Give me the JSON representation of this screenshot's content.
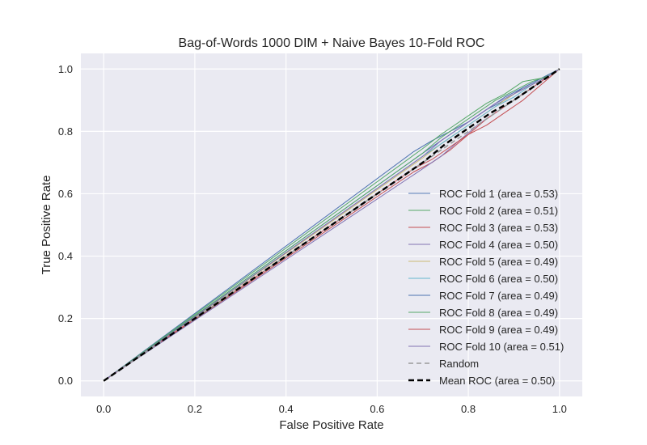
{
  "chart_data": {
    "type": "line",
    "title": "Bag-of-Words 1000 DIM + Naive Bayes 10-Fold ROC",
    "xlabel": "False Positive Rate",
    "ylabel": "True Positive Rate",
    "xlim": [
      -0.05,
      1.05
    ],
    "ylim": [
      -0.05,
      1.05
    ],
    "x_ticks": [
      "0.0",
      "0.2",
      "0.4",
      "0.6",
      "0.8",
      "1.0"
    ],
    "y_ticks": [
      "0.0",
      "0.2",
      "0.4",
      "0.6",
      "0.8",
      "1.0"
    ],
    "grid": true,
    "legend_position": "lower-right",
    "series": [
      {
        "name": "ROC Fold 1 (area = 0.53)",
        "color": "#4c72b0",
        "dash": "solid",
        "x": [
          0,
          0.68,
          0.72,
          0.76,
          0.8,
          0.84,
          0.88,
          0.92,
          0.96,
          1.0
        ],
        "y": [
          0,
          0.735,
          0.77,
          0.8,
          0.83,
          0.87,
          0.9,
          0.94,
          0.97,
          1.0
        ]
      },
      {
        "name": "ROC Fold 2 (area = 0.51)",
        "color": "#55a868",
        "dash": "solid",
        "x": [
          0,
          0.7,
          0.74,
          0.76,
          0.8,
          0.84,
          0.88,
          0.92,
          0.96,
          1.0
        ],
        "y": [
          0,
          0.745,
          0.79,
          0.81,
          0.85,
          0.89,
          0.92,
          0.96,
          0.97,
          1.0
        ]
      },
      {
        "name": "ROC Fold 3 (area = 0.53)",
        "color": "#c44e52",
        "dash": "solid",
        "x": [
          0,
          0.68,
          0.72,
          0.76,
          0.8,
          0.84,
          0.88,
          0.92,
          0.96,
          1.0
        ],
        "y": [
          0,
          0.67,
          0.7,
          0.74,
          0.79,
          0.82,
          0.86,
          0.9,
          0.95,
          1.0
        ]
      },
      {
        "name": "ROC Fold 4 (area = 0.50)",
        "color": "#8172b2",
        "dash": "solid",
        "x": [
          0,
          0.7,
          0.74,
          0.78,
          0.82,
          0.86,
          0.9,
          0.94,
          0.98,
          1.0
        ],
        "y": [
          0,
          0.68,
          0.72,
          0.77,
          0.82,
          0.86,
          0.9,
          0.94,
          0.98,
          1.0
        ]
      },
      {
        "name": "ROC Fold 5 (area = 0.49)",
        "color": "#ccb974",
        "dash": "solid",
        "x": [
          0,
          0.7,
          0.74,
          0.78,
          0.82,
          0.86,
          0.9,
          0.94,
          0.98,
          1.0
        ],
        "y": [
          0,
          0.715,
          0.76,
          0.8,
          0.84,
          0.88,
          0.92,
          0.95,
          0.98,
          1.0
        ]
      },
      {
        "name": "ROC Fold 6 (area = 0.50)",
        "color": "#64b5cd",
        "dash": "solid",
        "x": [
          0,
          0.7,
          0.74,
          0.78,
          0.82,
          0.86,
          0.9,
          0.94,
          0.98,
          1.0
        ],
        "y": [
          0,
          0.72,
          0.76,
          0.8,
          0.84,
          0.88,
          0.91,
          0.95,
          0.98,
          1.0
        ]
      },
      {
        "name": "ROC Fold 7 (area = 0.49)",
        "color": "#4c72b0",
        "dash": "solid",
        "x": [
          0,
          0.69,
          0.72,
          0.76,
          0.8,
          0.84,
          0.88,
          0.92,
          0.96,
          1.0
        ],
        "y": [
          0,
          0.72,
          0.75,
          0.79,
          0.83,
          0.87,
          0.91,
          0.94,
          0.97,
          1.0
        ]
      },
      {
        "name": "ROC Fold 8 (area = 0.49)",
        "color": "#55a868",
        "dash": "solid",
        "x": [
          0,
          0.7,
          0.74,
          0.78,
          0.82,
          0.86,
          0.9,
          0.94,
          0.98,
          1.0
        ],
        "y": [
          0,
          0.73,
          0.78,
          0.82,
          0.86,
          0.9,
          0.93,
          0.96,
          0.98,
          1.0
        ]
      },
      {
        "name": "ROC Fold 9 (area = 0.49)",
        "color": "#c44e52",
        "dash": "solid",
        "x": [
          0,
          0.68,
          0.72,
          0.76,
          0.8,
          0.84,
          0.88,
          0.92,
          0.96,
          1.0
        ],
        "y": [
          0,
          0.68,
          0.71,
          0.75,
          0.79,
          0.84,
          0.88,
          0.92,
          0.96,
          1.0
        ]
      },
      {
        "name": "ROC Fold 10 (area = 0.51)",
        "color": "#8172b2",
        "dash": "solid",
        "x": [
          0,
          0.7,
          0.74,
          0.78,
          0.82,
          0.86,
          0.9,
          0.94,
          0.98,
          1.0
        ],
        "y": [
          0,
          0.72,
          0.77,
          0.81,
          0.85,
          0.89,
          0.92,
          0.95,
          0.98,
          1.0
        ]
      },
      {
        "name": "Random",
        "color": "#999999",
        "dash": "dashed",
        "x": [
          0,
          1
        ],
        "y": [
          0,
          1
        ]
      },
      {
        "name": "Mean ROC (area = 0.50)",
        "color": "#000000",
        "dash": "dashed-bold",
        "x": [
          0,
          0.7,
          0.75,
          0.8,
          0.85,
          0.9,
          0.95,
          1.0
        ],
        "y": [
          0,
          0.7,
          0.76,
          0.81,
          0.86,
          0.9,
          0.95,
          1.0
        ]
      }
    ]
  }
}
